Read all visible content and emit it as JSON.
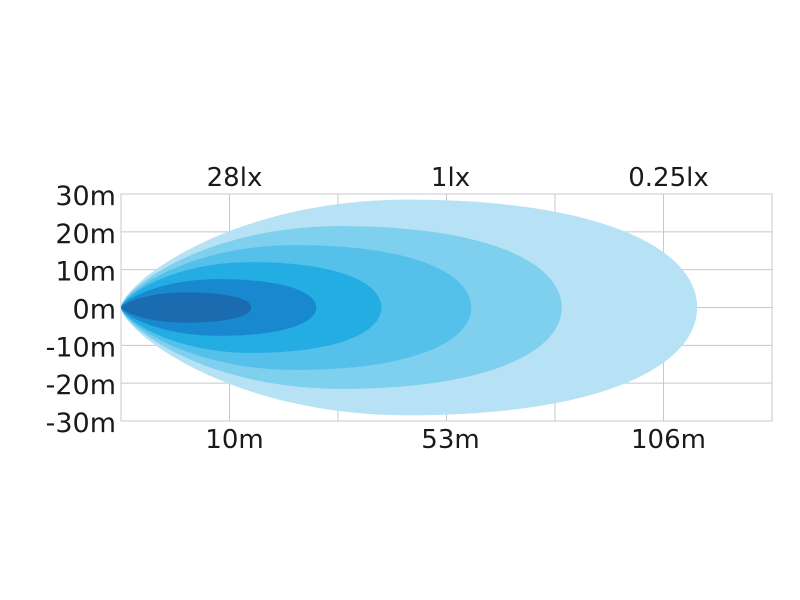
{
  "chart_data": {
    "type": "area",
    "title": "",
    "xlabel": "",
    "ylabel": "",
    "y_ticks": [
      "30m",
      "20m",
      "10m",
      "0m",
      "-10m",
      "-20m",
      "-30m"
    ],
    "ylim": [
      -30,
      30
    ],
    "top_labels": [
      "28lx",
      "1lx",
      "0.25lx"
    ],
    "bottom_labels": [
      "10m",
      "53m",
      "106m"
    ],
    "grid": true,
    "series": [
      {
        "color": "#b7e2f5",
        "reach": 0.885,
        "half_width": 28.5
      },
      {
        "color": "#7fcfee",
        "reach": 0.677,
        "half_width": 21.5
      },
      {
        "color": "#55c1ea",
        "reach": 0.538,
        "half_width": 16.5
      },
      {
        "color": "#23ade3",
        "reach": 0.4,
        "half_width": 12.0
      },
      {
        "color": "#1989cf",
        "reach": 0.3,
        "half_width": 7.5
      },
      {
        "color": "#1a6bb0",
        "reach": 0.2,
        "half_width": 4.0
      }
    ]
  }
}
